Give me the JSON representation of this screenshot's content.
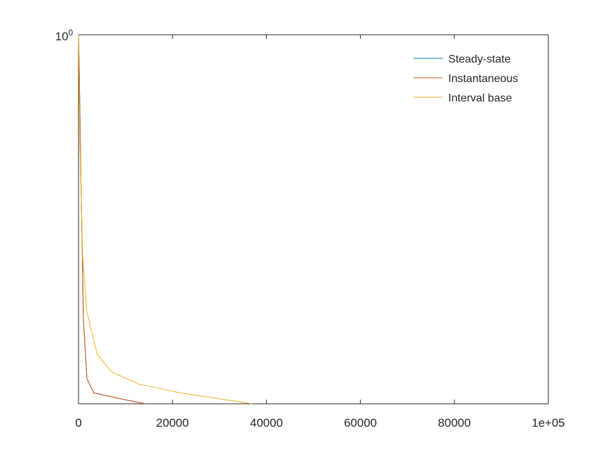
{
  "chart_data": {
    "type": "line",
    "xlim": [
      0,
      100000
    ],
    "xticks": [
      0,
      20000,
      40000,
      60000,
      80000,
      {
        "value": 100000,
        "label": "1e+05"
      }
    ],
    "ylim": [
      0.1,
      1
    ],
    "yticks": [
      {
        "value": 1,
        "label": "10^0"
      }
    ],
    "log_y": true,
    "legend": "northeast",
    "series": [
      {
        "name": "Steady-state",
        "color": "#0072bd",
        "x": [
          0,
          150,
          440,
          740,
          1040,
          1780,
          3250,
          9900,
          14300
        ],
        "values": [
          1,
          0.83,
          0.458,
          0.284,
          0.169,
          0.117,
          0.107,
          0.1026,
          0.1
        ]
      },
      {
        "name": "Instantaneous",
        "color": "#d95319",
        "x": [
          0,
          150,
          440,
          740,
          1040,
          1780,
          3250,
          9900,
          14300
        ],
        "values": [
          1,
          0.83,
          0.458,
          0.284,
          0.169,
          0.117,
          0.107,
          0.1026,
          0.1
        ]
      },
      {
        "name": "Interval base",
        "color": "#edb120",
        "x": [
          0,
          300,
          890,
          1780,
          4000,
          7000,
          12900,
          21700,
          37000
        ],
        "values": [
          1,
          0.5,
          0.25,
          0.177,
          0.136,
          0.122,
          0.113,
          0.107,
          0.1
        ]
      }
    ]
  }
}
